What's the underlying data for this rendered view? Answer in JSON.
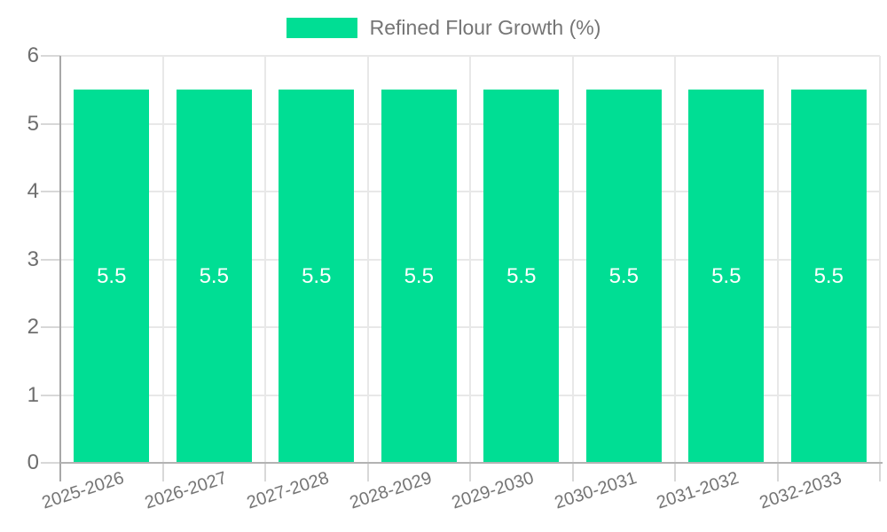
{
  "chart_data": {
    "type": "bar",
    "title": "",
    "legend": "Refined Flour Growth (%)",
    "legend_position": "top-center",
    "categories": [
      "2025-2026",
      "2026-2027",
      "2027-2028",
      "2028-2029",
      "2029-2030",
      "2030-2031",
      "2031-2032",
      "2032-2033"
    ],
    "values": [
      5.5,
      5.5,
      5.5,
      5.5,
      5.5,
      5.5,
      5.5,
      5.5
    ],
    "data_labels": [
      "5.5",
      "5.5",
      "5.5",
      "5.5",
      "5.5",
      "5.5",
      "5.5",
      "5.5"
    ],
    "xlabel": "",
    "ylabel": "",
    "ylim": [
      0,
      6
    ],
    "y_ticks": [
      0,
      1,
      2,
      3,
      4,
      5,
      6
    ],
    "grid": true,
    "x_label_rotation_deg": -18,
    "colors": {
      "bar": "#00DE94",
      "data_label_text": "#FFFFFF",
      "axis_text": "#6E6E6E",
      "category_text": "#757575",
      "legend_text": "#757575",
      "gridline": "#E8E8E8",
      "tick": "#D8D8D8",
      "axis_line": "#A8A8A8",
      "baseline": "#B3B3B3",
      "background": "#FFFFFF"
    }
  }
}
